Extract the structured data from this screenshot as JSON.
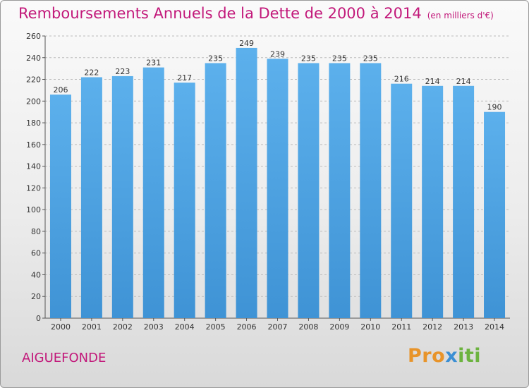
{
  "title": "Remboursements Annuels de la Dette de 2000 à 2014",
  "unit": "(en milliers d'€)",
  "place": "AIGUEFONDE",
  "brand": {
    "letters": [
      "P",
      "r",
      "o",
      "x",
      "i",
      "t",
      "i"
    ],
    "colors": [
      "#e8942a",
      "#e8942a",
      "#e8942a",
      "#3b8fd4",
      "#6cb33f",
      "#6cb33f",
      "#6cb33f"
    ]
  },
  "colors": {
    "bar": "#3f93d5",
    "bar_top": "#5cb0ec",
    "accent": "#c2187a"
  },
  "chart_data": {
    "type": "bar",
    "title": "Remboursements Annuels de la Dette de 2000 à 2014",
    "ylabel": "(en milliers d'€)",
    "categories": [
      "2000",
      "2001",
      "2002",
      "2003",
      "2004",
      "2005",
      "2006",
      "2007",
      "2008",
      "2009",
      "2010",
      "2011",
      "2012",
      "2013",
      "2014"
    ],
    "values": [
      206,
      222,
      223,
      231,
      217,
      235,
      249,
      239,
      235,
      235,
      235,
      216,
      214,
      214,
      190
    ],
    "yticks": [
      0,
      20,
      40,
      60,
      80,
      100,
      120,
      140,
      160,
      180,
      200,
      220,
      240,
      260
    ],
    "ylim": [
      0,
      260
    ],
    "grid": true
  }
}
